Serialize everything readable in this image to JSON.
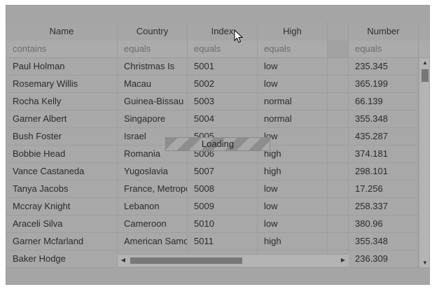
{
  "columns": [
    "Name",
    "Country",
    "Index",
    "High",
    "",
    "Number"
  ],
  "filters": [
    "contains",
    "equals",
    "equals",
    "equals",
    "",
    "equals"
  ],
  "rows": [
    [
      "Paul Holman",
      "Christmas Is",
      "5001",
      "low",
      "",
      "235.345"
    ],
    [
      "Rosemary Willis",
      "Macau",
      "5002",
      "low",
      "",
      "365.199"
    ],
    [
      "Rocha Kelly",
      "Guinea-Bissau",
      "5003",
      "normal",
      "",
      "66.139"
    ],
    [
      "Garner Albert",
      "Singapore",
      "5004",
      "normal",
      "",
      "355.348"
    ],
    [
      "Bush Foster",
      "Israel",
      "5005",
      "low",
      "",
      "435.287"
    ],
    [
      "Bobbie Head",
      "Romania",
      "5006",
      "high",
      "",
      "374.181"
    ],
    [
      "Vance Castaneda",
      "Yugoslavia",
      "5007",
      "high",
      "",
      "298.101"
    ],
    [
      "Tanya Jacobs",
      "France, Metropolitan",
      "5008",
      "low",
      "",
      "17.256"
    ],
    [
      "Mccray Knight",
      "Lebanon",
      "5009",
      "low",
      "",
      "258.337"
    ],
    [
      "Araceli Silva",
      "Cameroon",
      "5010",
      "low",
      "",
      "380.96"
    ],
    [
      "Garner Mcfarland",
      "American Samoa",
      "5011",
      "high",
      "",
      "355.348"
    ],
    [
      "Baker Hodge",
      "",
      "",
      "",
      "",
      "236.309"
    ]
  ],
  "loading_label": "Loading",
  "scroll": {
    "up_icon": "▲",
    "down_icon": "▼",
    "left_icon": "◀",
    "right_icon": "▶"
  }
}
